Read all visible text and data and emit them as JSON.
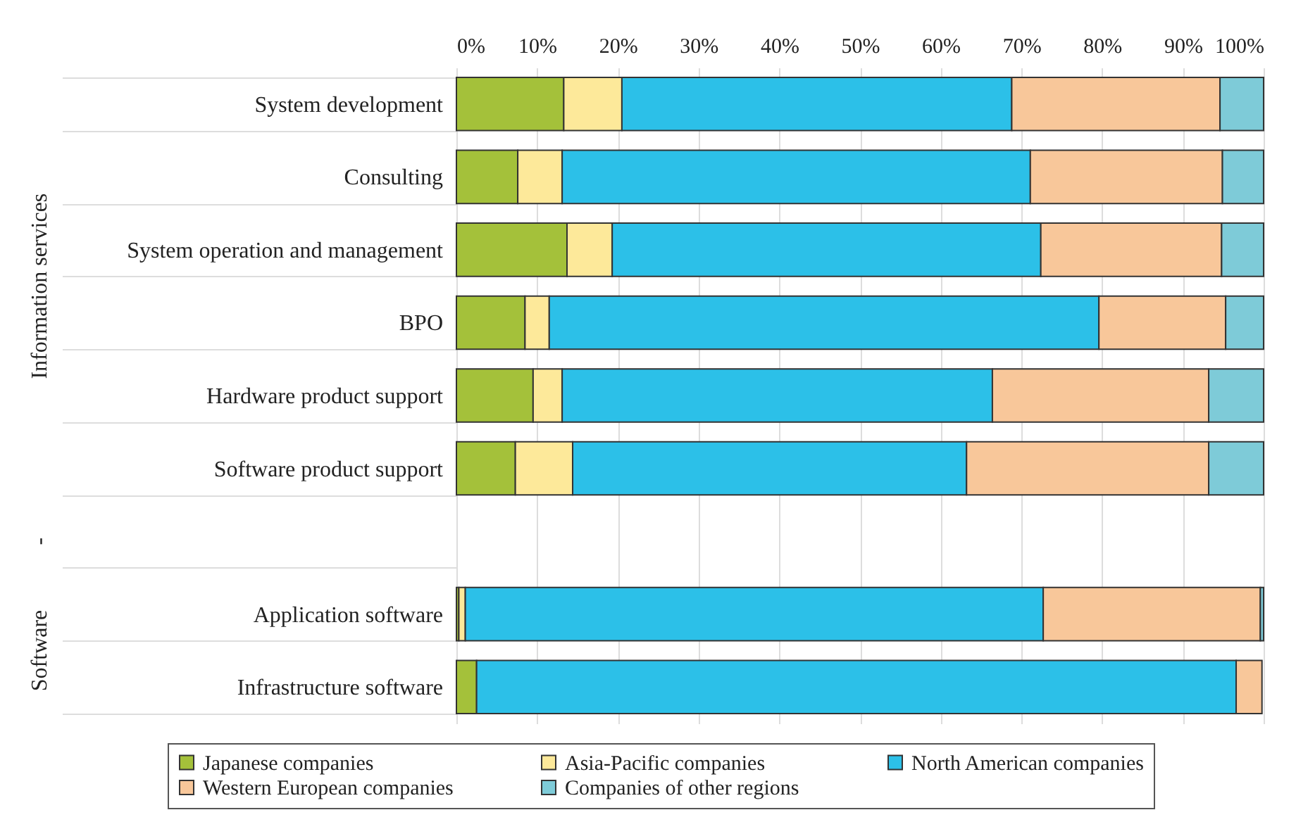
{
  "chart_data": {
    "type": "bar",
    "orientation": "horizontal",
    "stacked": true,
    "categories": [
      "System development",
      "Consulting",
      "System operation and management",
      "BPO",
      "Hardware product support",
      "Software product support",
      null,
      "Application software",
      "Infrastructure software"
    ],
    "series": [
      {
        "name": "Japanese companies",
        "color": "#a4c13a",
        "values": [
          13.3,
          7.6,
          13.7,
          8.5,
          9.5,
          7.3,
          null,
          0.3,
          2.5
        ]
      },
      {
        "name": "Asia-Pacific companies",
        "color": "#fde99a",
        "values": [
          7.2,
          5.5,
          5.6,
          3.0,
          3.6,
          7.1,
          null,
          0.8,
          null
        ]
      },
      {
        "name": "North American companies",
        "color": "#2cc0e8",
        "values": [
          48.3,
          58.0,
          53.1,
          68.1,
          53.3,
          48.8,
          null,
          71.6,
          94.1
        ]
      },
      {
        "name": "Western European companies",
        "color": "#f8c79a",
        "values": [
          25.8,
          23.8,
          22.4,
          15.7,
          26.8,
          30.0,
          null,
          26.9,
          3.2
        ]
      },
      {
        "name": "Companies of other regions",
        "color": "#7ecbd8",
        "values": [
          5.4,
          5.1,
          5.2,
          4.7,
          6.8,
          6.8,
          null,
          0.4,
          null
        ]
      }
    ],
    "xlim": [
      0,
      100
    ],
    "xticks": [
      {
        "value": 0,
        "label": "0%"
      },
      {
        "value": 10,
        "label": "10%"
      },
      {
        "value": 20,
        "label": "20%"
      },
      {
        "value": 30,
        "label": "30%"
      },
      {
        "value": 40,
        "label": "40%"
      },
      {
        "value": 50,
        "label": "50%"
      },
      {
        "value": 60,
        "label": "60%"
      },
      {
        "value": 70,
        "label": "70%"
      },
      {
        "value": 80,
        "label": "80%"
      },
      {
        "value": 90,
        "label": "90%"
      },
      {
        "value": 100,
        "label": "100%"
      }
    ],
    "annotations": [
      "Information services",
      "-",
      "Software"
    ],
    "grid": "x",
    "legend": "bottom"
  }
}
